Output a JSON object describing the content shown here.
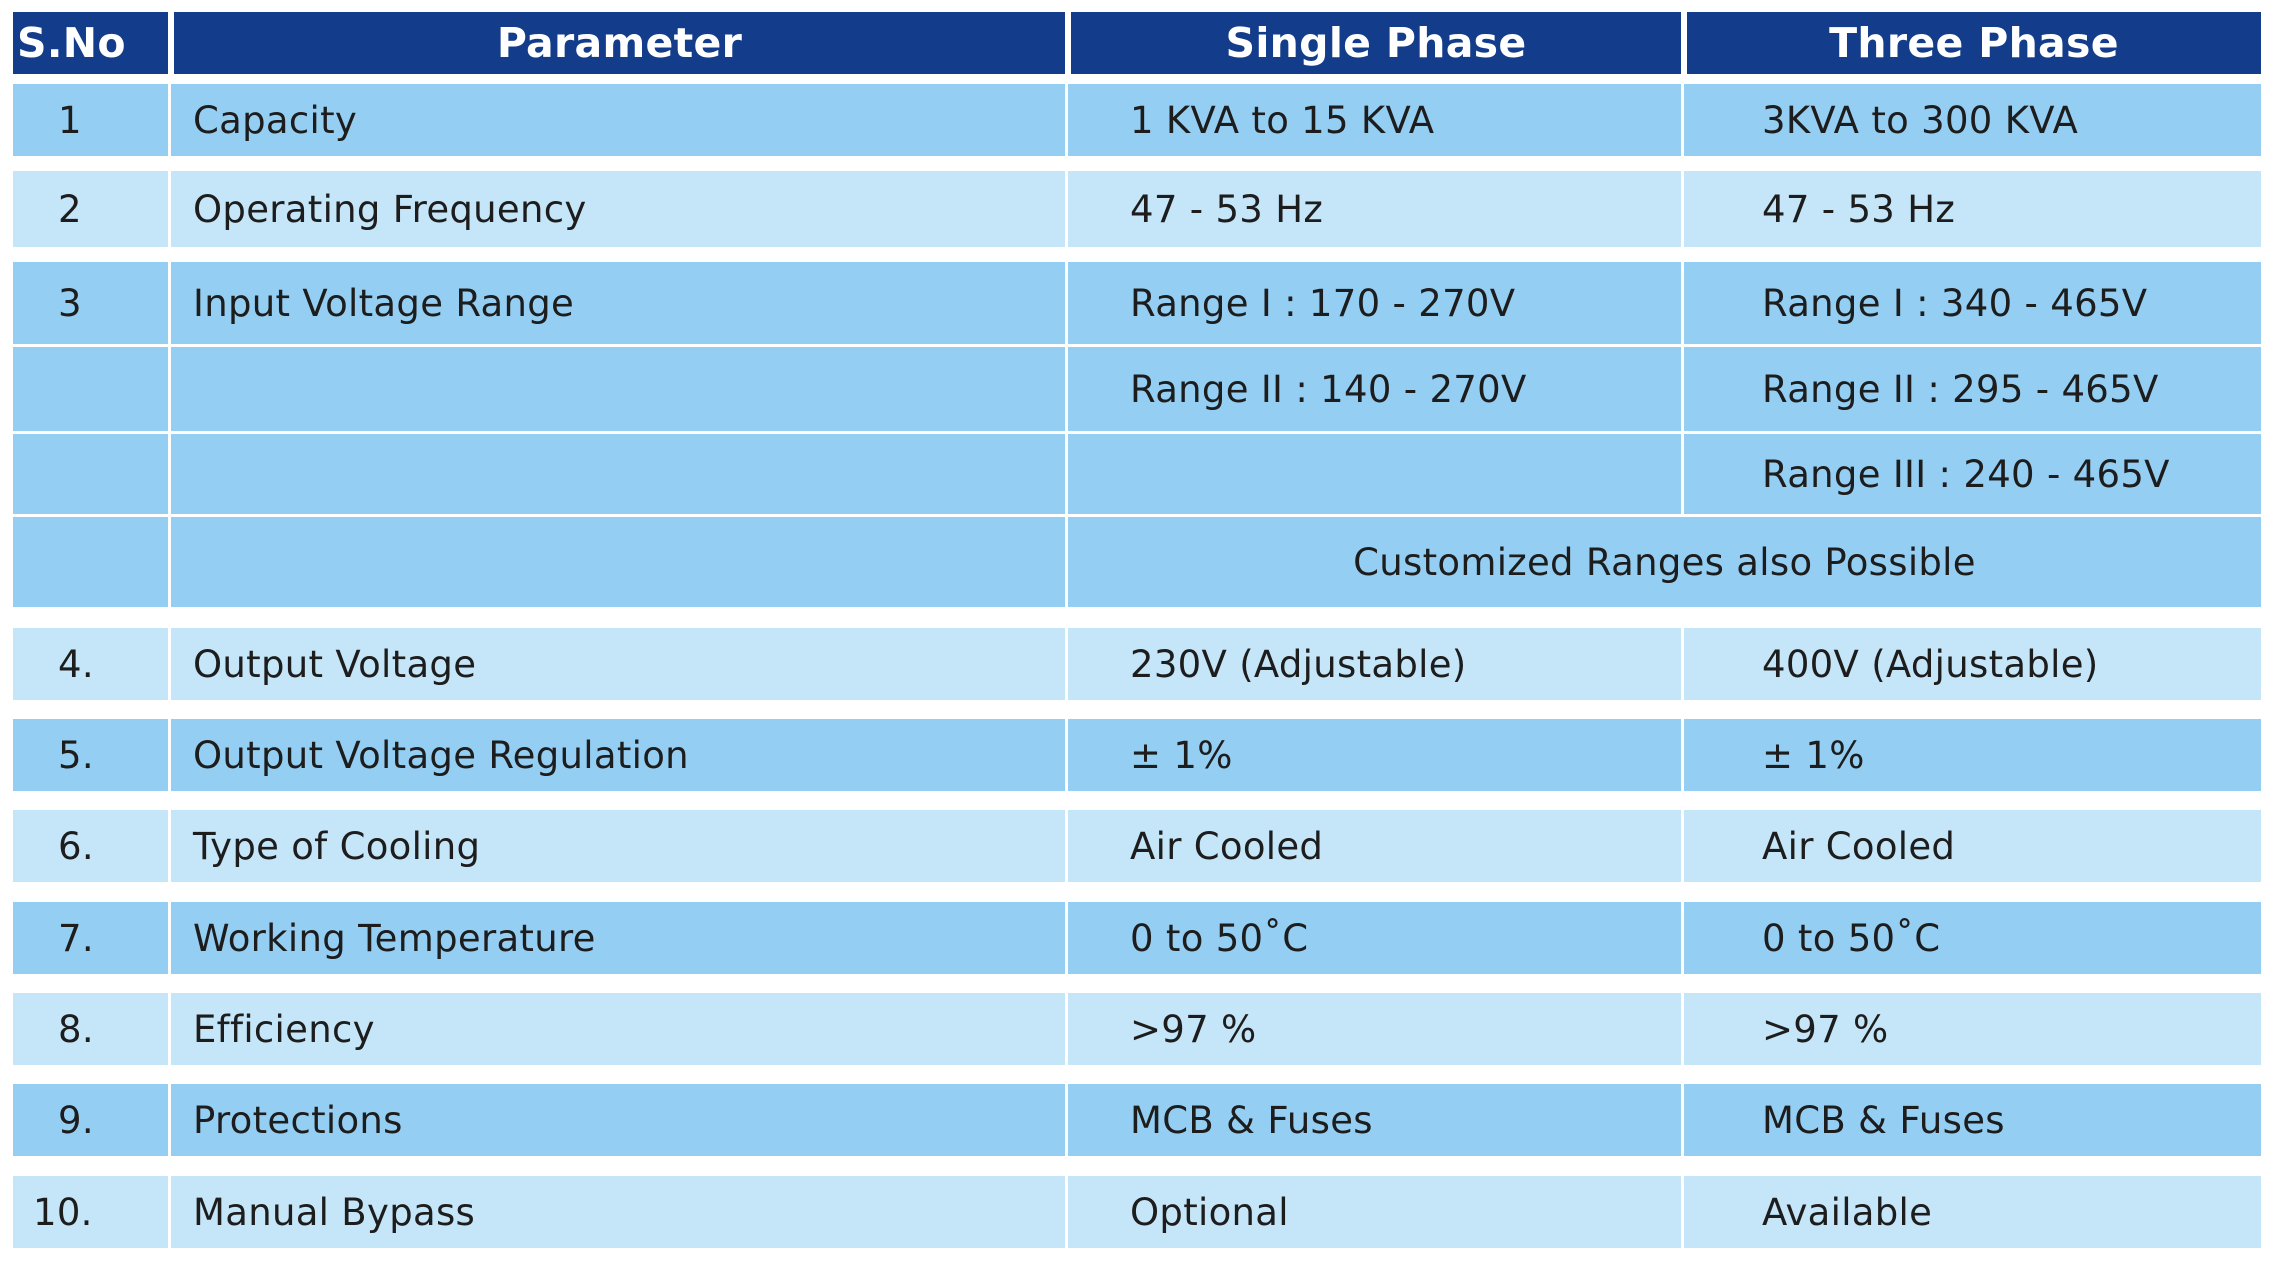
{
  "table": {
    "headers": [
      "S.No",
      "Parameter",
      "Single Phase",
      "Three Phase"
    ],
    "rows": [
      {
        "sno": "1",
        "parameter": "Capacity",
        "single": "1  KVA to 15 KVA",
        "three": "3KVA to 300 KVA"
      },
      {
        "sno": "2",
        "parameter": "Operating Frequency",
        "single": "47 - 53 Hz",
        "three": "47 - 53 Hz"
      },
      {
        "sno": "3",
        "parameter": "Input Voltage Range",
        "single": "Range I : 170 - 270V",
        "three": "Range I   : 340 - 465V"
      },
      {
        "sno": "",
        "parameter": "",
        "single": "Range II : 140 - 270V",
        "three": "Range II  : 295 - 465V"
      },
      {
        "sno": "",
        "parameter": "",
        "single": "",
        "three": "Range III : 240 - 465V"
      },
      {
        "sno": "",
        "parameter": "",
        "span_note": "Customized Ranges also Possible"
      },
      {
        "sno": "4.",
        "parameter": "Output Voltage",
        "single": "230V (Adjustable)",
        "three": "400V (Adjustable)"
      },
      {
        "sno": "5.",
        "parameter": "Output Voltage Regulation",
        "single": "± 1%",
        "three": "± 1%"
      },
      {
        "sno": "6.",
        "parameter": "Type of Cooling",
        "single": "Air Cooled",
        "three": "Air Cooled"
      },
      {
        "sno": "7.",
        "parameter": "Working Temperature",
        "single": "0 to 50˚C",
        "three": "0 to 50˚C"
      },
      {
        "sno": "8.",
        "parameter": "Efficiency",
        "single": ">97 %",
        "three": ">97 %"
      },
      {
        "sno": "9.",
        "parameter": "Protections",
        "single": "MCB & Fuses",
        "three": "MCB & Fuses"
      },
      {
        "sno": "10.",
        "parameter": "Manual Bypass",
        "single": "Optional",
        "three": "Available"
      }
    ]
  },
  "colors": {
    "header_bg": "#133d8b",
    "row_dark": "#95cef3",
    "row_light": "#c5e5f8"
  }
}
